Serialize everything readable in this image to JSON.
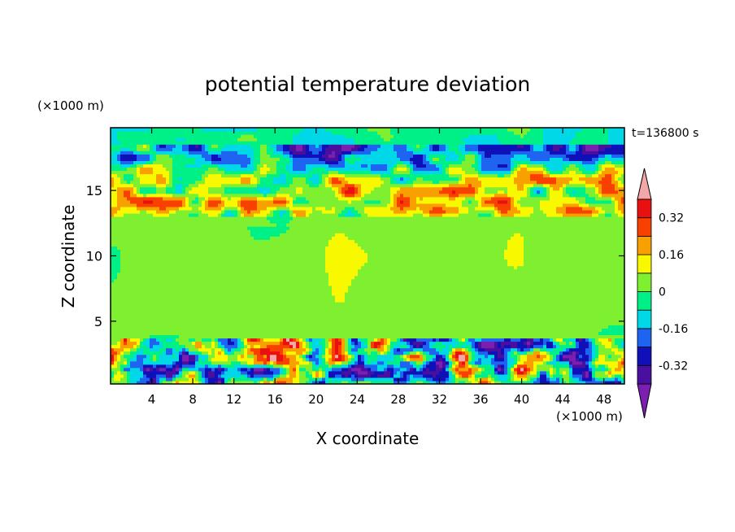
{
  "chart_data": {
    "type": "heatmap",
    "title": "potential temperature deviation",
    "xlabel": "X coordinate",
    "ylabel": "Z coordinate",
    "x_unit": "(×1000 m)",
    "y_unit": "(×1000 m)",
    "time_label": "t=136800 s",
    "xlim": [
      0,
      50
    ],
    "ylim": [
      0.2,
      19.8
    ],
    "x_ticks": [
      4,
      8,
      12,
      16,
      20,
      24,
      28,
      32,
      36,
      40,
      44,
      48
    ],
    "y_ticks": [
      5,
      10,
      15
    ],
    "colorbar": {
      "levels": [
        -0.4,
        -0.32,
        -0.24,
        -0.16,
        -0.08,
        0,
        0.08,
        0.16,
        0.24,
        0.32,
        0.4
      ],
      "labels": [
        "-0.32",
        "-0.16",
        "0",
        "0.16",
        "0.32"
      ],
      "label_values": [
        -0.32,
        -0.16,
        0,
        0.16,
        0.32
      ],
      "under_color": "#7a1fb0",
      "over_color": "#f4a7a7",
      "colors": [
        "#4b0fa0",
        "#1010b8",
        "#1e64f0",
        "#00d8e8",
        "#00f088",
        "#7ff030",
        "#f8f800",
        "#f8a000",
        "#f84000",
        "#e81010"
      ]
    },
    "field_bands": [
      {
        "z_range": [
          0.2,
          3.6
        ],
        "description_value": "mixed",
        "typical": [
          -0.4,
          0.4
        ]
      },
      {
        "z_range": [
          3.6,
          13.0
        ],
        "typical": [
          -0.02,
          0.06
        ]
      },
      {
        "z_range": [
          13.0,
          18.5
        ],
        "typical": [
          -0.45,
          0.45
        ]
      },
      {
        "z_range": [
          18.5,
          19.8
        ],
        "typical": [
          -0.1,
          0.05
        ]
      }
    ]
  }
}
